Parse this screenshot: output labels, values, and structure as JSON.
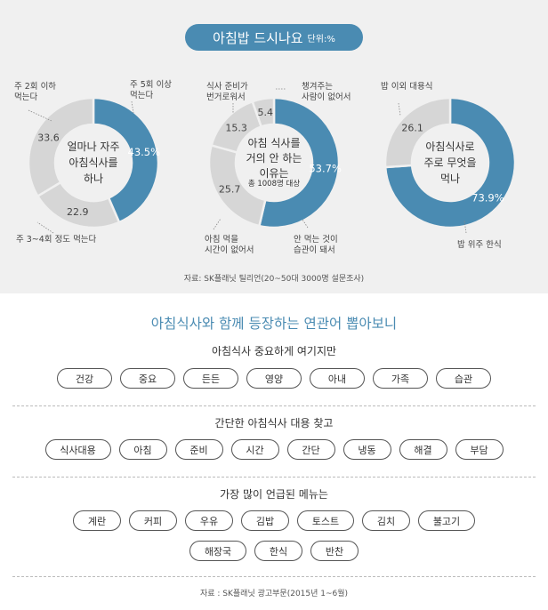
{
  "header": {
    "title": "아침밥 드시나요",
    "unit": "단위:%"
  },
  "chart_data": [
    {
      "type": "pie",
      "center_label": [
        "얼마나 자주",
        "아침식사를",
        "하나"
      ],
      "segments": [
        {
          "label": [
            "주 5회 이상",
            "먹는다"
          ],
          "value": 43.5,
          "value_text": "43.5%",
          "color": "#4a8bb2"
        },
        {
          "label": [
            "주 3~4회 정도 먹는다"
          ],
          "value": 22.9,
          "value_text": "22.9",
          "color": "#d6d6d6"
        },
        {
          "label": [
            "주 2회 이하",
            "먹는다"
          ],
          "value": 33.6,
          "value_text": "33.6",
          "color": "#d6d6d6"
        }
      ]
    },
    {
      "type": "pie",
      "center_label": [
        "아침 식사를",
        "거의 안 하는",
        "이유는"
      ],
      "center_sub": "총 1008명 대상",
      "segments": [
        {
          "label": [
            "안 먹는 것이",
            "습관이 돼서"
          ],
          "value": 53.7,
          "value_text": "53.7%",
          "color": "#4a8bb2"
        },
        {
          "label": [
            "아침 먹을",
            "시간이 없어서"
          ],
          "value": 25.7,
          "value_text": "25.7",
          "color": "#d6d6d6"
        },
        {
          "label": [
            "식사 준비가",
            "번거로워서"
          ],
          "value": 15.3,
          "value_text": "15.3",
          "color": "#d6d6d6"
        },
        {
          "label": [
            "챙겨주는",
            "사람이 없어서"
          ],
          "value": 5.4,
          "value_text": "5.4",
          "color": "#d6d6d6"
        }
      ]
    },
    {
      "type": "pie",
      "center_label": [
        "아침식사로",
        "주로 무엇을",
        "먹나"
      ],
      "segments": [
        {
          "label": [
            "밥 위주 한식"
          ],
          "value": 73.9,
          "value_text": "73.9%",
          "color": "#4a8bb2"
        },
        {
          "label": [
            "밥 이외 대용식"
          ],
          "value": 26.1,
          "value_text": "26.1",
          "color": "#d6d6d6"
        }
      ]
    }
  ],
  "source_top": "자료: SK플래닛 틸리언(20~50대 3000명 설문조사)",
  "keywords": {
    "title": "아침식사와 함께 등장하는 연관어 뽑아보니",
    "sections": [
      {
        "title": "아침식사 중요하게 여기지만",
        "words": [
          "건강",
          "중요",
          "든든",
          "영양",
          "아내",
          "가족",
          "습관"
        ]
      },
      {
        "title": "간단한 아침식사 대용 찾고",
        "words": [
          "식사대용",
          "아침",
          "준비",
          "시간",
          "간단",
          "냉동",
          "해결",
          "부담"
        ]
      },
      {
        "title": "가장 많이 언급된 메뉴는",
        "words": [
          "계란",
          "커피",
          "우유",
          "김밥",
          "토스트",
          "김치",
          "불고기",
          "해장국",
          "한식",
          "반찬"
        ]
      }
    ]
  },
  "source_bottom": "자료 : SK플래닛 광고부문(2015년 1~6월)"
}
